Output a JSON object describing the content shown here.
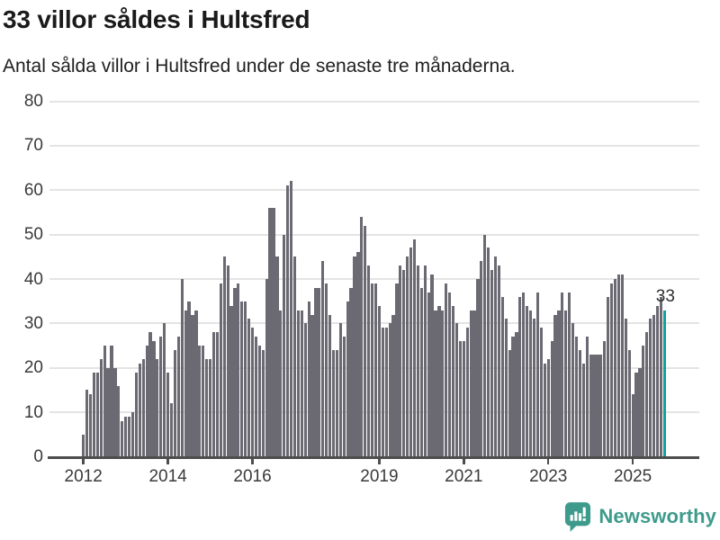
{
  "header": {
    "title": "33 villor såldes i Hultsfred",
    "subtitle": "Antal sålda villor i Hultsfred under de senaste tre månaderna."
  },
  "chart_data": {
    "type": "bar",
    "title": "33 villor såldes i Hultsfred",
    "ylabel": "",
    "xlabel": "",
    "ylim": [
      0,
      80
    ],
    "yticks": [
      0,
      10,
      20,
      30,
      40,
      50,
      60,
      70,
      80
    ],
    "xtick_labels": [
      "2012",
      "2014",
      "2016",
      "2019",
      "2021",
      "2023",
      "2025"
    ],
    "grid": true,
    "frequency": "monthly",
    "first_month_label": "2012",
    "values": [
      5,
      15,
      14,
      19,
      19,
      22,
      25,
      20,
      25,
      20,
      16,
      8,
      9,
      9,
      10,
      19,
      21,
      22,
      25,
      28,
      26,
      22,
      27,
      30,
      19,
      12,
      24,
      27,
      40,
      33,
      35,
      32,
      33,
      25,
      25,
      22,
      22,
      28,
      28,
      39,
      45,
      43,
      34,
      38,
      39,
      35,
      35,
      31,
      29,
      27,
      25,
      24,
      40,
      56,
      56,
      45,
      33,
      50,
      61,
      62,
      45,
      33,
      33,
      30,
      35,
      32,
      38,
      38,
      44,
      39,
      32,
      24,
      24,
      30,
      27,
      35,
      38,
      45,
      46,
      54,
      52,
      43,
      39,
      39,
      34,
      29,
      29,
      30,
      32,
      39,
      43,
      42,
      45,
      47,
      49,
      43,
      38,
      43,
      37,
      41,
      33,
      34,
      33,
      39,
      37,
      34,
      30,
      26,
      26,
      29,
      33,
      33,
      40,
      44,
      50,
      47,
      42,
      45,
      43,
      36,
      31,
      24,
      27,
      28,
      36,
      37,
      34,
      33,
      31,
      37,
      29,
      21,
      22,
      26,
      32,
      33,
      37,
      33,
      37,
      30,
      27,
      24,
      21,
      27,
      23,
      23,
      23,
      23,
      26,
      36,
      39,
      40,
      41,
      41,
      31,
      24,
      14,
      19,
      20,
      25,
      28,
      31,
      32,
      34,
      36,
      33
    ],
    "highlight_last_value": 33,
    "last_value_label": "33",
    "bar_color": "#6b6a73",
    "highlight_color": "#11a29c",
    "legend": []
  },
  "annotation": {
    "label": "33"
  },
  "footer": {
    "brand": "Newsworthy"
  },
  "colors": {
    "title": "#1a1a1a",
    "axis": "#4d4d4d",
    "gridline": "#e4e4e4",
    "tick_label": "#3a3a3a",
    "brand_teal": "#3e9b8c"
  }
}
